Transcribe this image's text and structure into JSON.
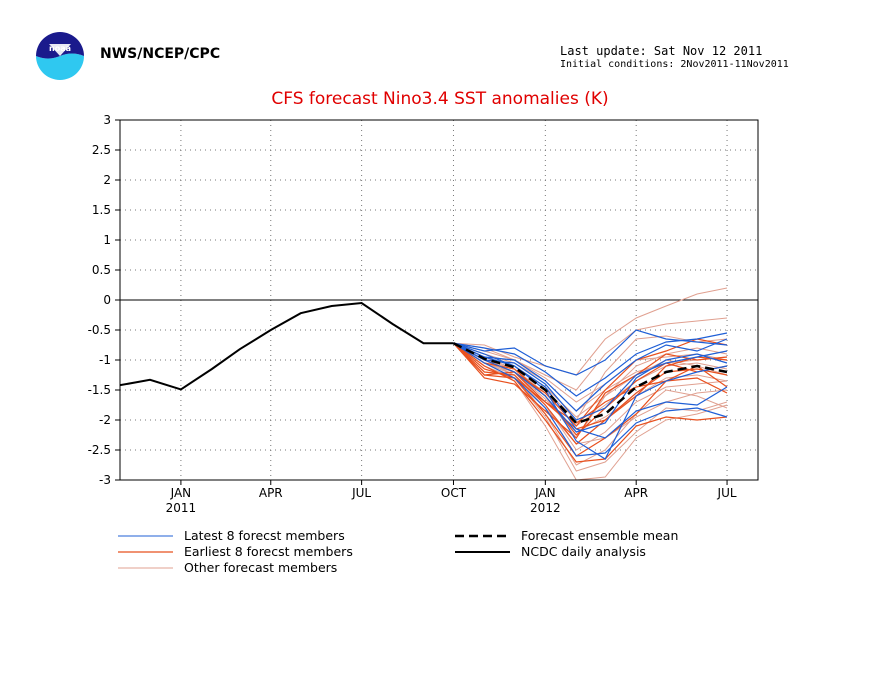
{
  "header": {
    "org": "NWS/NCEP/CPC",
    "last_update": "Last update: Sat Nov 12 2011",
    "initial_conditions": "Initial conditions: 2Nov2011-11Nov2011"
  },
  "colors": {
    "latest": "#1f5fd6",
    "earliest": "#e8501e",
    "other": "#e0a090",
    "title": "#e00000",
    "observed": "#000000"
  },
  "chart_data": {
    "type": "line",
    "title": "CFS forecast Nino3.4 SST anomalies (K)",
    "xlabel": "",
    "ylabel": "",
    "ylim": [
      -3,
      3
    ],
    "yticks": [
      -3,
      -2.5,
      -2,
      -1.5,
      -1,
      -0.5,
      0,
      0.5,
      1,
      1.5,
      2,
      2.5,
      3
    ],
    "ytick_labels": [
      "-3",
      "-2.5",
      "-2",
      "-1.5",
      "-1",
      "-0.5",
      "0",
      "0.5",
      "1",
      "1.5",
      "2",
      "2.5",
      "3"
    ],
    "xlim": [
      "2010-11-01",
      "2012-08-01"
    ],
    "xticks": [
      {
        "date": "2011-01-01",
        "label": "JAN",
        "year": "2011"
      },
      {
        "date": "2011-04-01",
        "label": "APR",
        "year": ""
      },
      {
        "date": "2011-07-01",
        "label": "JUL",
        "year": ""
      },
      {
        "date": "2011-10-01",
        "label": "OCT",
        "year": ""
      },
      {
        "date": "2012-01-01",
        "label": "JAN",
        "year": "2012"
      },
      {
        "date": "2012-04-01",
        "label": "APR",
        "year": ""
      },
      {
        "date": "2012-07-01",
        "label": "JUL",
        "year": ""
      }
    ],
    "grid": true,
    "legend": [
      {
        "label": "Latest 8 forecst members",
        "group": "latest"
      },
      {
        "label": "Earliest 8 forecst members",
        "group": "earliest"
      },
      {
        "label": "Other forecast members",
        "group": "other"
      },
      {
        "label": "Forecast ensemble mean",
        "group": "mean"
      },
      {
        "label": "NCDC daily analysis",
        "group": "observed"
      }
    ],
    "observed": {
      "x": [
        "2010-11-01",
        "2010-12-01",
        "2011-01-01",
        "2011-02-01",
        "2011-03-01",
        "2011-04-01",
        "2011-05-01",
        "2011-06-01",
        "2011-07-01",
        "2011-08-01",
        "2011-09-01",
        "2011-10-01"
      ],
      "y": [
        -1.42,
        -1.33,
        -1.49,
        -1.15,
        -0.82,
        -0.5,
        -0.22,
        -0.1,
        -0.05,
        -0.4,
        -0.72,
        -0.72
      ]
    },
    "forecast_x": [
      "2011-10-01",
      "2011-11-01",
      "2011-12-01",
      "2012-01-01",
      "2012-02-01",
      "2012-03-01",
      "2012-04-01",
      "2012-05-01",
      "2012-06-01",
      "2012-07-01"
    ],
    "ensemble_mean": [
      -0.72,
      -0.98,
      -1.12,
      -1.5,
      -2.05,
      -1.9,
      -1.45,
      -1.2,
      -1.1,
      -1.2
    ],
    "series": [
      {
        "group": "latest",
        "values": [
          -0.72,
          -0.85,
          -0.8,
          -1.1,
          -1.25,
          -1.0,
          -0.5,
          -0.65,
          -0.7,
          -0.75
        ]
      },
      {
        "group": "latest",
        "values": [
          -0.72,
          -0.95,
          -1.0,
          -1.35,
          -1.85,
          -1.4,
          -1.0,
          -0.75,
          -0.85,
          -0.65
        ]
      },
      {
        "group": "latest",
        "values": [
          -0.72,
          -1.0,
          -1.2,
          -1.6,
          -2.2,
          -2.05,
          -1.3,
          -1.0,
          -0.9,
          -1.05
        ]
      },
      {
        "group": "latest",
        "values": [
          -0.72,
          -1.05,
          -1.3,
          -1.8,
          -2.6,
          -2.55,
          -2.05,
          -1.85,
          -1.8,
          -1.95
        ]
      },
      {
        "group": "latest",
        "values": [
          -0.72,
          -0.9,
          -1.1,
          -1.45,
          -2.15,
          -2.3,
          -1.85,
          -1.7,
          -1.75,
          -1.45
        ]
      },
      {
        "group": "latest",
        "values": [
          -0.72,
          -1.0,
          -1.05,
          -1.4,
          -2.0,
          -1.8,
          -1.25,
          -1.05,
          -0.95,
          -0.85
        ]
      },
      {
        "group": "latest",
        "values": [
          -0.72,
          -0.95,
          -1.1,
          -1.5,
          -2.35,
          -2.65,
          -1.6,
          -1.35,
          -1.2,
          -1.1
        ]
      },
      {
        "group": "latest",
        "values": [
          -0.72,
          -0.8,
          -0.9,
          -1.2,
          -1.6,
          -1.3,
          -0.9,
          -0.7,
          -0.65,
          -0.55
        ]
      },
      {
        "group": "earliest",
        "values": [
          -0.72,
          -1.25,
          -1.2,
          -1.55,
          -2.1,
          -1.5,
          -1.0,
          -0.85,
          -0.65,
          -0.75
        ]
      },
      {
        "group": "earliest",
        "values": [
          -0.72,
          -1.2,
          -1.25,
          -1.75,
          -2.4,
          -2.0,
          -1.6,
          -1.1,
          -0.95,
          -1.0
        ]
      },
      {
        "group": "earliest",
        "values": [
          -0.72,
          -1.15,
          -1.3,
          -1.9,
          -2.6,
          -2.3,
          -1.9,
          -1.35,
          -1.1,
          -1.45
        ]
      },
      {
        "group": "earliest",
        "values": [
          -0.72,
          -1.1,
          -1.35,
          -2.0,
          -2.7,
          -2.65,
          -2.1,
          -1.95,
          -2.0,
          -1.95
        ]
      },
      {
        "group": "earliest",
        "values": [
          -0.72,
          -1.05,
          -1.15,
          -1.6,
          -2.25,
          -1.8,
          -1.35,
          -1.05,
          -1.2,
          -1.1
        ]
      },
      {
        "group": "earliest",
        "values": [
          -0.72,
          -1.3,
          -1.4,
          -1.85,
          -2.3,
          -1.55,
          -1.25,
          -0.9,
          -1.0,
          -0.95
        ]
      },
      {
        "group": "earliest",
        "values": [
          -0.72,
          -1.0,
          -1.2,
          -1.7,
          -2.05,
          -1.7,
          -1.45,
          -1.35,
          -1.3,
          -1.55
        ]
      },
      {
        "group": "earliest",
        "values": [
          -0.72,
          -1.25,
          -1.3,
          -1.7,
          -2.15,
          -2.0,
          -1.55,
          -1.2,
          -1.15,
          -1.25
        ]
      },
      {
        "group": "other",
        "values": [
          -0.72,
          -0.75,
          -0.95,
          -1.1,
          -1.25,
          -0.65,
          -0.3,
          -0.1,
          0.1,
          0.2
        ]
      },
      {
        "group": "other",
        "values": [
          -0.72,
          -0.8,
          -1.0,
          -1.25,
          -1.5,
          -0.9,
          -0.5,
          -0.4,
          -0.35,
          -0.3
        ]
      },
      {
        "group": "other",
        "values": [
          -0.72,
          -0.95,
          -1.1,
          -1.5,
          -2.0,
          -1.2,
          -0.65,
          -0.6,
          -0.7,
          -0.65
        ]
      },
      {
        "group": "other",
        "values": [
          -0.72,
          -1.0,
          -1.15,
          -1.6,
          -2.3,
          -1.6,
          -1.1,
          -0.9,
          -0.8,
          -0.9
        ]
      },
      {
        "group": "other",
        "values": [
          -0.72,
          -1.05,
          -1.25,
          -1.9,
          -2.75,
          -2.5,
          -1.9,
          -1.5,
          -1.6,
          -1.8
        ]
      },
      {
        "group": "other",
        "values": [
          -0.72,
          -1.1,
          -1.35,
          -2.1,
          -3.0,
          -2.95,
          -2.3,
          -2.0,
          -1.9,
          -1.75
        ]
      },
      {
        "group": "other",
        "values": [
          -0.72,
          -0.9,
          -1.05,
          -1.35,
          -1.85,
          -1.5,
          -1.2,
          -1.05,
          -1.0,
          -0.95
        ]
      },
      {
        "group": "other",
        "values": [
          -0.72,
          -1.0,
          -1.2,
          -1.75,
          -2.5,
          -2.2,
          -1.7,
          -1.45,
          -1.4,
          -1.35
        ]
      },
      {
        "group": "other",
        "values": [
          -0.72,
          -0.85,
          -1.0,
          -1.3,
          -1.7,
          -1.4,
          -1.0,
          -0.95,
          -0.9,
          -1.0
        ]
      },
      {
        "group": "other",
        "values": [
          -0.72,
          -1.1,
          -1.3,
          -1.95,
          -2.85,
          -2.7,
          -2.2,
          -1.8,
          -1.85,
          -1.7
        ]
      },
      {
        "group": "other",
        "values": [
          -0.72,
          -0.95,
          -1.15,
          -1.55,
          -2.1,
          -1.75,
          -1.35,
          -1.1,
          -1.05,
          -1.15
        ]
      },
      {
        "group": "other",
        "values": [
          -0.72,
          -1.05,
          -1.2,
          -1.65,
          -2.2,
          -1.95,
          -1.6,
          -1.3,
          -1.25,
          -1.35
        ]
      },
      {
        "group": "other",
        "values": [
          -0.72,
          -0.9,
          -1.1,
          -1.45,
          -1.95,
          -1.6,
          -1.25,
          -1.0,
          -1.1,
          -1.25
        ]
      },
      {
        "group": "other",
        "values": [
          -0.72,
          -1.0,
          -1.25,
          -1.8,
          -2.4,
          -2.3,
          -1.95,
          -1.7,
          -1.55,
          -1.5
        ]
      }
    ]
  }
}
